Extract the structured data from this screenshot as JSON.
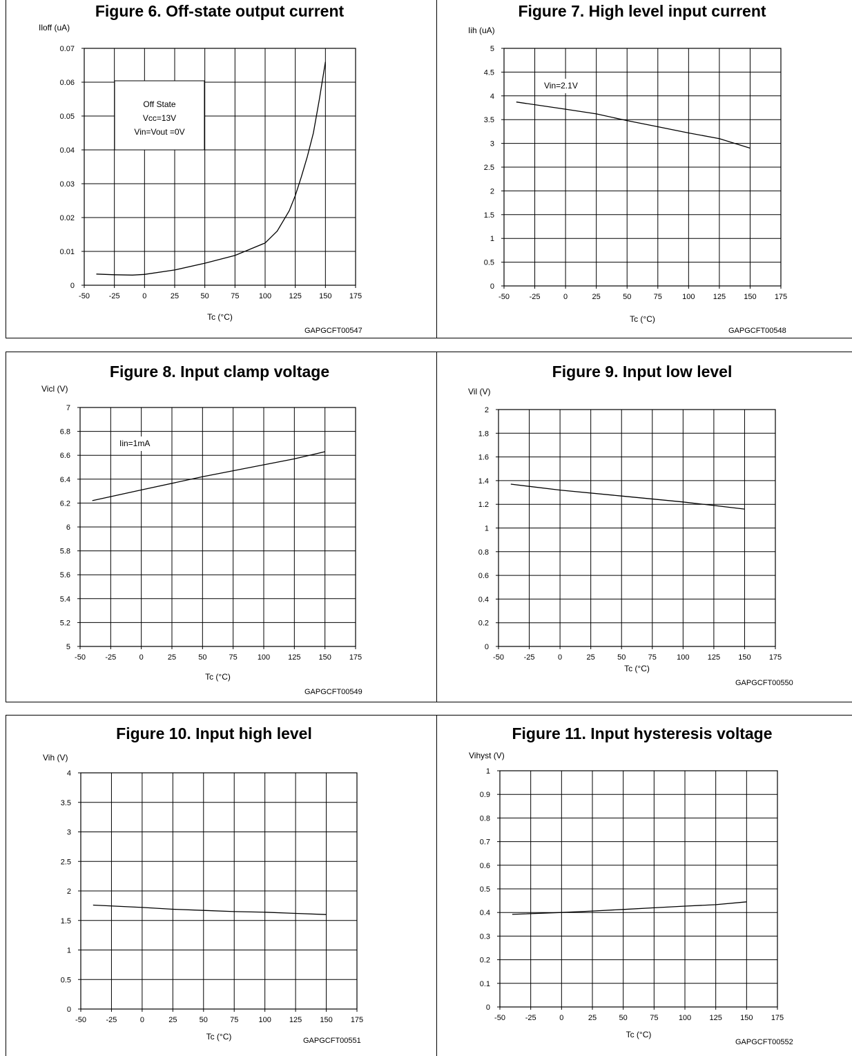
{
  "chart_data": [
    {
      "type": "line",
      "title": "Figure 6. Off-state output current",
      "ylabel": "Iloff (uA)",
      "xlabel": "Tc (°C)",
      "code": "GAPGCFT00547",
      "xlim": [
        -50,
        175
      ],
      "ylim": [
        0,
        0.07
      ],
      "xticks": [
        "-50",
        "-25",
        "0",
        "25",
        "50",
        "75",
        "100",
        "125",
        "150",
        "175"
      ],
      "yticks": [
        "0",
        "0.01",
        "0.02",
        "0.03",
        "0.04",
        "0.05",
        "0.06",
        "0.07"
      ],
      "annotation": [
        "Off State",
        "Vcc=13V",
        "Vin=Vout =0V"
      ],
      "grid": true,
      "series": [
        {
          "x": [
            -40,
            -25,
            -10,
            0,
            25,
            50,
            75,
            100,
            110,
            120,
            125,
            130,
            135,
            140,
            145,
            150
          ],
          "y": [
            0.0033,
            0.0031,
            0.003,
            0.0032,
            0.0045,
            0.0065,
            0.0088,
            0.0125,
            0.016,
            0.022,
            0.0265,
            0.032,
            0.038,
            0.045,
            0.055,
            0.066
          ]
        }
      ]
    },
    {
      "type": "line",
      "title": "Figure 7. High level input current",
      "ylabel": "Iih (uA)",
      "xlabel": "Tc (°C)",
      "code": "GAPGCFT00548",
      "xlim": [
        -50,
        175
      ],
      "ylim": [
        0,
        5
      ],
      "xticks": [
        "-50",
        "-25",
        "0",
        "25",
        "50",
        "75",
        "100",
        "125",
        "150",
        "175"
      ],
      "yticks": [
        "0",
        "0.5",
        "1",
        "1.5",
        "2",
        "2.5",
        "3",
        "3.5",
        "4",
        "4.5",
        "5"
      ],
      "annotation": [
        "Vin=2.1V"
      ],
      "grid": true,
      "series": [
        {
          "x": [
            -40,
            0,
            25,
            50,
            75,
            100,
            125,
            150
          ],
          "y": [
            3.87,
            3.72,
            3.62,
            3.48,
            3.35,
            3.22,
            3.1,
            2.9
          ]
        }
      ]
    },
    {
      "type": "line",
      "title": "Figure 8. Input clamp voltage",
      "ylabel": "Vicl (V)",
      "xlabel": "Tc (°C)",
      "code": "GAPGCFT00549",
      "xlim": [
        -50,
        175
      ],
      "ylim": [
        5,
        7
      ],
      "xticks": [
        "-50",
        "-25",
        "0",
        "25",
        "50",
        "75",
        "100",
        "125",
        "150",
        "175"
      ],
      "yticks": [
        "5",
        "5.2",
        "5.4",
        "5.6",
        "5.8",
        "6",
        "6.2",
        "6.4",
        "6.6",
        "6.8",
        "7"
      ],
      "annotation": [
        "Iin=1mA"
      ],
      "grid": true,
      "series": [
        {
          "x": [
            -40,
            0,
            50,
            100,
            125,
            150
          ],
          "y": [
            6.22,
            6.31,
            6.42,
            6.52,
            6.57,
            6.63
          ]
        }
      ]
    },
    {
      "type": "line",
      "title": "Figure 9. Input low level",
      "ylabel": "Vil (V)",
      "xlabel": "Tc (°C)",
      "code": "GAPGCFT00550",
      "xlim": [
        -50,
        175
      ],
      "ylim": [
        0,
        2
      ],
      "xticks": [
        "-50",
        "-25",
        "0",
        "25",
        "50",
        "75",
        "100",
        "125",
        "150",
        "175"
      ],
      "yticks": [
        "0",
        "0.2",
        "0.4",
        "0.6",
        "0.8",
        "1",
        "1.2",
        "1.4",
        "1.6",
        "1.8",
        "2"
      ],
      "annotation": [],
      "grid": true,
      "series": [
        {
          "x": [
            -40,
            0,
            50,
            100,
            125,
            150
          ],
          "y": [
            1.37,
            1.32,
            1.27,
            1.22,
            1.19,
            1.16
          ]
        }
      ]
    },
    {
      "type": "line",
      "title": "Figure 10. Input high level",
      "ylabel": "Vih (V)",
      "xlabel": "Tc (°C)",
      "code": "GAPGCFT00551",
      "xlim": [
        -50,
        175
      ],
      "ylim": [
        0,
        4
      ],
      "xticks": [
        "-50",
        "-25",
        "0",
        "25",
        "50",
        "75",
        "100",
        "125",
        "150",
        "175"
      ],
      "yticks": [
        "0",
        "0.5",
        "1",
        "1.5",
        "2",
        "2.5",
        "3",
        "3.5",
        "4"
      ],
      "annotation": [],
      "grid": true,
      "series": [
        {
          "x": [
            -40,
            0,
            25,
            50,
            75,
            100,
            125,
            150
          ],
          "y": [
            1.76,
            1.72,
            1.69,
            1.67,
            1.65,
            1.64,
            1.62,
            1.6
          ]
        }
      ]
    },
    {
      "type": "line",
      "title": "Figure 11. Input hysteresis voltage",
      "ylabel": "Vihyst (V)",
      "xlabel": "Tc (°C)",
      "code": "GAPGCFT00552",
      "xlim": [
        -50,
        175
      ],
      "ylim": [
        0,
        1
      ],
      "xticks": [
        "-50",
        "-25",
        "0",
        "25",
        "50",
        "75",
        "100",
        "125",
        "150",
        "175"
      ],
      "yticks": [
        "0",
        "0.1",
        "0.2",
        "0.3",
        "0.4",
        "0.5",
        "0.6",
        "0.7",
        "0.8",
        "0.9",
        "1"
      ],
      "annotation": [],
      "grid": true,
      "series": [
        {
          "x": [
            -40,
            0,
            25,
            50,
            75,
            100,
            125,
            150
          ],
          "y": [
            0.392,
            0.4,
            0.406,
            0.413,
            0.42,
            0.427,
            0.433,
            0.445
          ]
        }
      ]
    }
  ]
}
